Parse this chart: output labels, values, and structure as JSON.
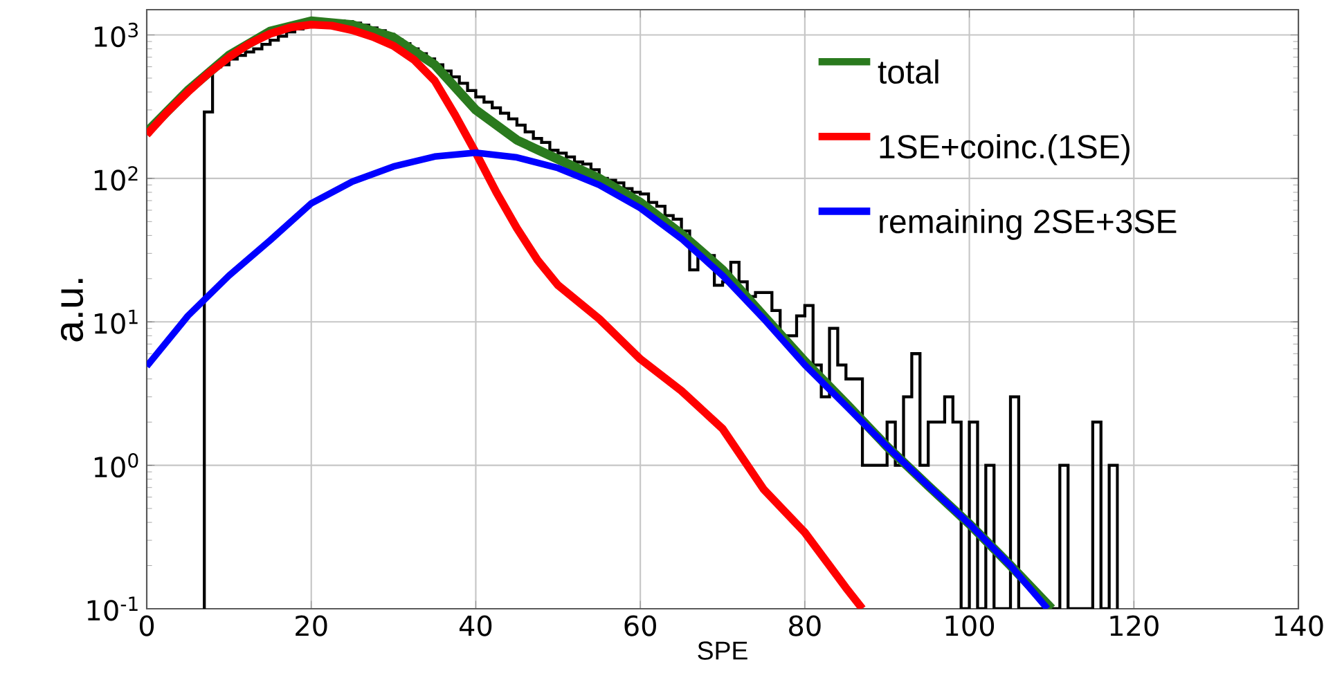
{
  "chart_data": {
    "type": "histogram",
    "xlabel": "SPE",
    "ylabel": "a.u.",
    "color": "#000000",
    "bins": [
      7,
      8,
      9,
      10,
      11,
      12,
      13,
      14,
      15,
      16,
      17,
      18,
      19,
      20,
      21,
      22,
      23,
      24,
      25,
      26,
      27,
      28,
      29,
      30,
      31,
      32,
      33,
      34,
      35,
      36,
      37,
      38,
      39,
      40,
      41,
      42,
      43,
      44,
      45,
      46,
      47,
      48,
      49,
      50,
      51,
      52,
      53,
      54,
      55,
      56,
      57,
      58,
      59,
      60,
      61,
      62,
      63,
      64,
      65,
      66,
      67,
      68,
      69,
      70,
      71,
      72,
      73,
      74,
      75,
      76,
      77,
      78,
      79,
      80,
      81,
      82,
      83,
      84,
      85,
      86,
      87,
      88,
      89,
      90,
      91,
      92,
      93,
      94,
      95,
      96,
      97,
      98,
      99,
      100,
      101,
      102,
      103,
      104,
      105,
      106,
      107,
      108,
      109,
      110,
      111,
      112,
      113,
      114,
      115,
      116,
      117,
      118
    ],
    "values": [
      290,
      600,
      620,
      680,
      720,
      760,
      800,
      860,
      920,
      980,
      1050,
      1100,
      1150,
      1200,
      1230,
      1250,
      1250,
      1240,
      1210,
      1170,
      1120,
      1070,
      1010,
      930,
      870,
      800,
      740,
      680,
      620,
      560,
      510,
      460,
      410,
      370,
      340,
      310,
      285,
      260,
      235,
      211,
      190,
      178,
      157,
      150,
      141,
      130,
      126,
      115,
      100,
      97,
      93,
      85,
      80,
      78,
      68,
      64,
      55,
      52,
      43,
      23,
      29,
      29,
      18,
      19,
      26,
      19,
      15,
      16,
      16,
      12,
      8,
      8,
      11,
      13,
      5,
      3,
      9,
      5,
      4,
      4,
      1,
      1,
      1,
      2,
      1,
      3,
      6,
      1,
      2,
      2,
      3,
      2,
      null,
      2,
      null,
      1,
      null,
      null,
      3,
      null,
      null,
      null,
      null,
      null,
      1,
      null,
      null,
      null,
      2,
      null,
      1
    ],
    "series": [
      {
        "name": "total",
        "type": "line",
        "color": "#2a7a1e",
        "x": [
          0,
          5,
          10,
          15,
          20,
          25,
          30,
          35,
          40,
          45,
          50,
          55,
          60,
          65,
          70,
          75,
          80,
          85,
          90,
          95,
          100,
          105,
          110
        ],
        "values": [
          210,
          410,
          720,
          1060,
          1250,
          1175,
          960,
          620,
          300,
          185,
          136,
          100,
          68,
          41,
          23,
          11,
          5.3,
          2.7,
          1.35,
          0.72,
          0.39,
          0.2,
          0.1
        ]
      },
      {
        "name": "1SE+coinc.(1SE)",
        "type": "line",
        "color": "#ff0000",
        "x": [
          0,
          2.5,
          5,
          7.5,
          10,
          12.5,
          15,
          17.5,
          20,
          22.5,
          25,
          27.5,
          30,
          32.5,
          35,
          37.5,
          40,
          42.5,
          45,
          47.5,
          50,
          55,
          60,
          65,
          70,
          75,
          80,
          85,
          87
        ],
        "values": [
          202,
          290,
          400,
          540,
          700,
          870,
          1020,
          1130,
          1180,
          1160,
          1080,
          970,
          840,
          670,
          480,
          276,
          151,
          80,
          45,
          27,
          18,
          10.5,
          5.5,
          3.3,
          1.8,
          0.68,
          0.34,
          0.14,
          0.1
        ]
      },
      {
        "name": "remaining 2SE+3SE",
        "type": "line",
        "color": "#0000ff",
        "x": [
          0,
          5,
          10,
          15,
          20,
          25,
          30,
          35,
          40,
          45,
          50,
          55,
          60,
          65,
          70,
          75,
          80,
          85,
          90,
          95,
          100,
          105,
          109.5
        ],
        "values": [
          4.9,
          11,
          21,
          37,
          67,
          95,
          121,
          142,
          151,
          140,
          118,
          90,
          62,
          38,
          21,
          10.5,
          5.0,
          2.6,
          1.35,
          0.72,
          0.39,
          0.2,
          0.1
        ]
      }
    ],
    "xlim": [
      0,
      140
    ],
    "ylim": [
      0.1,
      1500
    ],
    "xticks": [
      0,
      20,
      40,
      60,
      80,
      100,
      120,
      140
    ],
    "yticks": [
      {
        "value": 0.1,
        "label": "10$^{-1}$"
      },
      {
        "value": 1,
        "label": "10$^{0}$"
      },
      {
        "value": 10,
        "label": "10$^{1}$"
      },
      {
        "value": 100,
        "label": "10$^{2}$"
      },
      {
        "value": 1000,
        "label": "10$^{3}$"
      }
    ],
    "log": "y",
    "grid": true,
    "legend": "top right"
  }
}
